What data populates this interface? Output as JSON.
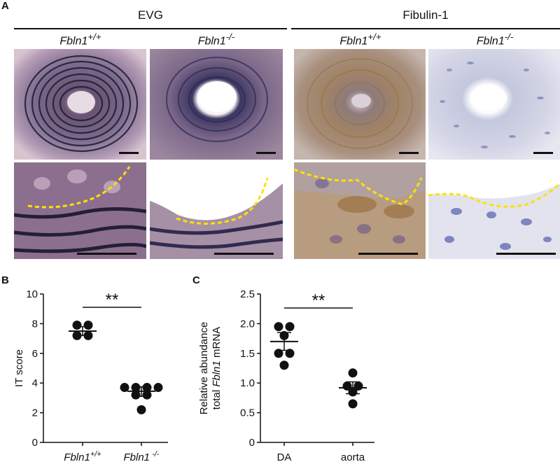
{
  "panel_a": {
    "letter": "A",
    "groups": [
      {
        "title": "EVG",
        "columns": [
          {
            "genotype": "Fbln1",
            "sup": "+/+"
          },
          {
            "genotype": "Fbln1",
            "sup": "-/-"
          }
        ]
      },
      {
        "title": "Fibulin-1",
        "columns": [
          {
            "genotype": "Fbln1",
            "sup": "+/+"
          },
          {
            "genotype": "Fbln1",
            "sup": "-/-"
          }
        ]
      }
    ]
  },
  "chart_data": [
    {
      "panel": "B",
      "type": "scatter",
      "ylabel": "IT score",
      "ylim": [
        0,
        10
      ],
      "yticks": [
        0,
        2,
        4,
        6,
        8,
        10
      ],
      "categories": [
        {
          "label": "Fbln1",
          "sup": "+/+"
        },
        {
          "label": "Fbln1",
          "sup": " -/-"
        }
      ],
      "groups": [
        {
          "points": [
            7.9,
            7.9,
            7.2,
            7.2
          ],
          "mean": 7.5,
          "sem_low": 7.2,
          "sem_high": 7.8
        },
        {
          "points": [
            3.7,
            3.7,
            3.7,
            3.7,
            3.2,
            3.2,
            2.2
          ],
          "mean": 3.45,
          "sem_low": 3.1,
          "sem_high": 3.75
        }
      ],
      "significance": "**"
    },
    {
      "panel": "C",
      "type": "scatter",
      "ylabel_line1": "Relative abundance",
      "ylabel_line2_prefix": "total ",
      "ylabel_line2_italic": "Fbln1",
      "ylabel_line2_suffix": " mRNA",
      "ylim": [
        0,
        2.5
      ],
      "yticks": [
        "0",
        "0.5",
        "1.0",
        "1.5",
        "2.0",
        "2.5"
      ],
      "ytick_values": [
        0,
        0.5,
        1.0,
        1.5,
        2.0,
        2.5
      ],
      "categories": [
        {
          "label": "DA"
        },
        {
          "label": "aorta"
        }
      ],
      "groups": [
        {
          "points": [
            1.95,
            1.95,
            1.8,
            1.5,
            1.5,
            1.3
          ],
          "mean": 1.7,
          "sem_low": 1.55,
          "sem_high": 1.85
        },
        {
          "points": [
            1.17,
            0.95,
            0.95,
            0.85,
            0.65
          ],
          "mean": 0.92,
          "sem_low": 0.82,
          "sem_high": 1.02
        }
      ],
      "significance": "**"
    }
  ]
}
